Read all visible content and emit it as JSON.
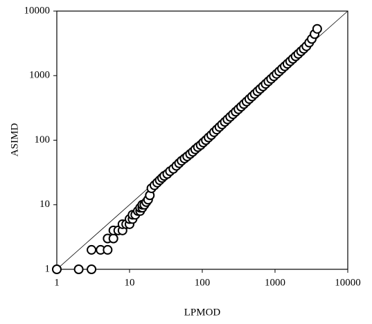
{
  "chart_data": {
    "type": "scatter",
    "xlabel": "LPMOD",
    "ylabel": "ASIMD",
    "xscale": "log",
    "yscale": "log",
    "xlim": [
      1,
      10000
    ],
    "ylim": [
      1,
      10000
    ],
    "xticks": [
      1,
      10,
      100,
      1000,
      10000
    ],
    "yticks": [
      1,
      10,
      100,
      1000,
      10000
    ],
    "diagonal": true,
    "color": "#000000",
    "x": [
      1,
      2,
      3,
      3,
      4,
      5,
      5,
      6,
      6,
      7,
      8,
      8,
      9,
      10,
      10,
      11,
      11,
      12,
      13,
      14,
      14,
      15,
      15,
      16,
      17,
      18,
      19,
      20,
      22,
      24,
      26,
      28,
      30,
      33,
      36,
      40,
      44,
      48,
      52,
      57,
      62,
      68,
      74,
      80,
      87,
      95,
      103,
      112,
      122,
      133,
      145,
      158,
      172,
      187,
      204,
      222,
      242,
      264,
      288,
      314,
      342,
      373,
      406,
      443,
      483,
      526,
      574,
      625,
      682,
      743,
      810,
      883,
      963,
      1050,
      1144,
      1247,
      1360,
      1482,
      1615,
      1760,
      1920,
      2090,
      2280,
      2480,
      2700,
      2950,
      3200,
      3500,
      3800
    ],
    "values": [
      1,
      1,
      1,
      2,
      2,
      2,
      3,
      3,
      4,
      4,
      4,
      5,
      5,
      5,
      6,
      6,
      7,
      7,
      8,
      8,
      9,
      9,
      10,
      10,
      11,
      12,
      14,
      18,
      20,
      22,
      24,
      26,
      28,
      30,
      33,
      36,
      40,
      44,
      48,
      52,
      56,
      61,
      66,
      72,
      78,
      84,
      92,
      100,
      110,
      120,
      133,
      146,
      160,
      175,
      192,
      210,
      230,
      252,
      276,
      302,
      330,
      362,
      396,
      434,
      475,
      520,
      570,
      622,
      680,
      745,
      815,
      890,
      975,
      1065,
      1165,
      1275,
      1395,
      1525,
      1665,
      1820,
      1990,
      2170,
      2380,
      2600,
      2850,
      3250,
      3700,
      4400,
      5300
    ]
  }
}
